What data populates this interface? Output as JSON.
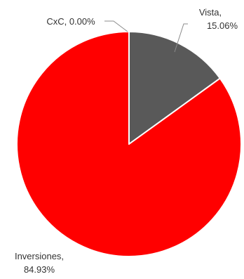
{
  "chart_data": {
    "type": "pie",
    "title": "",
    "start_angle_deg": 0,
    "direction": "clockwise",
    "slices": [
      {
        "name": "Vista",
        "value": 15.06,
        "label": [
          "Vista,",
          "15.06%"
        ],
        "color": "#595959"
      },
      {
        "name": "Inversiones",
        "value": 84.93,
        "label": [
          "Inversiones,",
          "84.93%"
        ],
        "color": "#ff0000"
      },
      {
        "name": "CxC",
        "value": 0.0,
        "label": [
          "CxC, 0.00%"
        ],
        "color": "#7f7f7f"
      }
    ],
    "slice_border_color": "#ffffff",
    "legend": "none",
    "data_labels": "outside with leader lines"
  }
}
